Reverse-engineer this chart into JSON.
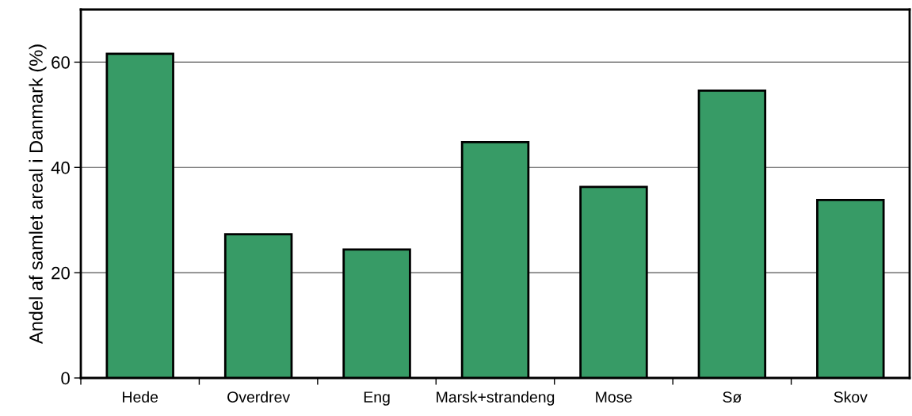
{
  "chart_data": {
    "type": "bar",
    "ylabel": "Andel af samlet areal i Danmark (%)",
    "categories": [
      "Hede",
      "Overdrev",
      "Eng",
      "Marsk+strandeng",
      "Mose",
      "Sø",
      "Skov"
    ],
    "values": [
      61.6,
      27.3,
      24.4,
      44.8,
      36.3,
      54.6,
      33.8
    ],
    "color": "#379b66",
    "ylim": [
      0,
      70
    ],
    "yticks": [
      0,
      20,
      40,
      60
    ],
    "grid": "y",
    "legend": false
  }
}
